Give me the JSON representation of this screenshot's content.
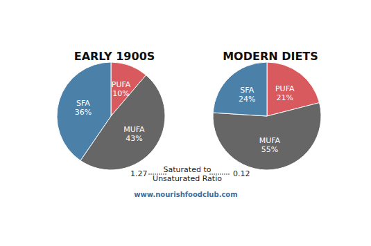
{
  "chart_data": [
    {
      "type": "pie",
      "title": "EARLY 1900S",
      "categories": [
        "PUFA",
        "MUFA",
        "SFA"
      ],
      "values": [
        10,
        43,
        36
      ],
      "value_labels": [
        "10%",
        "43%",
        "36%"
      ],
      "colors": [
        "#d95a5e",
        "#666666",
        "#4b80a9"
      ],
      "data_labels": true,
      "ratio": 1.27
    },
    {
      "type": "pie",
      "title": "MODERN DIETS",
      "categories": [
        "PUFA",
        "MUFA",
        "SFA"
      ],
      "values": [
        21,
        55,
        24
      ],
      "value_labels": [
        "21%",
        "55%",
        "24%"
      ],
      "colors": [
        "#d95a5e",
        "#666666",
        "#4b80a9"
      ],
      "data_labels": true,
      "ratio": 0.12
    }
  ],
  "ratio_label": [
    "Saturated to",
    "Unsaturated Ratio"
  ],
  "source": "www.nourishfoodclub.com"
}
